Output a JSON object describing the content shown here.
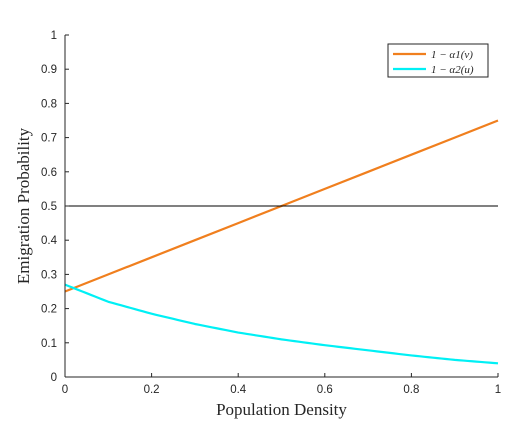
{
  "chart_data": {
    "type": "line",
    "xlabel": "Population Density",
    "ylabel": "Emigration Probability",
    "xlim": [
      0,
      1
    ],
    "ylim": [
      0,
      1
    ],
    "x_ticks": [
      0,
      0.2,
      0.4,
      0.6,
      0.8,
      1
    ],
    "x_tick_labels": [
      "0",
      "0.2",
      "0.4",
      "0.6",
      "0.8",
      "1"
    ],
    "y_ticks": [
      0,
      0.1,
      0.2,
      0.3,
      0.4,
      0.5,
      0.6,
      0.7,
      0.8,
      0.9,
      1
    ],
    "y_tick_labels": [
      "0",
      "0.1",
      "0.2",
      "0.3",
      "0.4",
      "0.5",
      "0.6",
      "0.7",
      "0.8",
      "0.9",
      "1"
    ],
    "grid": false,
    "legend_position": "top-right",
    "series": [
      {
        "name": "1 − α1(v)",
        "color": "#f07f1e",
        "x": [
          0,
          0.1,
          0.2,
          0.3,
          0.4,
          0.5,
          0.6,
          0.7,
          0.8,
          0.9,
          1
        ],
        "y": [
          0.25,
          0.3,
          0.35,
          0.4,
          0.45,
          0.5,
          0.55,
          0.6,
          0.65,
          0.7,
          0.75
        ]
      },
      {
        "name": "1 − α2(u)",
        "color": "#00f0f5",
        "x": [
          0,
          0.1,
          0.2,
          0.3,
          0.4,
          0.5,
          0.6,
          0.7,
          0.8,
          0.9,
          1
        ],
        "y": [
          0.27,
          0.22,
          0.185,
          0.155,
          0.13,
          0.11,
          0.093,
          0.078,
          0.063,
          0.05,
          0.04
        ]
      },
      {
        "name": "",
        "color": "#000000",
        "x": [
          0,
          1
        ],
        "y": [
          0.5,
          0.5
        ]
      }
    ]
  }
}
